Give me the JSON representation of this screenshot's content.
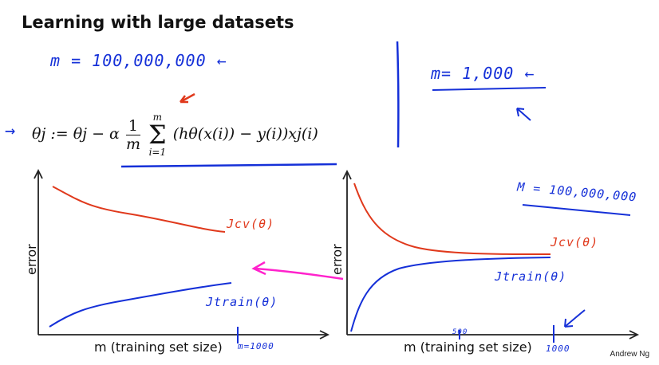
{
  "slide": {
    "title": "Learning with large datasets",
    "author": "Andrew Ng"
  },
  "annotations": {
    "m_large": "m = 100,000,000 ←",
    "m_small": "m= 1,000 ←",
    "m_large_right": "M = 100,000,000",
    "arrow_marker": "→",
    "jcv": "Jcv(θ)",
    "jtrain": "Jtrain(θ)",
    "m_tick_left": "m=1000",
    "tick_500": "500",
    "tick_1000": "1000"
  },
  "formula": {
    "theta_j": "θj := θj − α",
    "fraction_num": "1",
    "fraction_den": "m",
    "sum_top": "m",
    "sum_bottom": "i=1",
    "body": "(hθ(x(i)) − y(i))xj(i)"
  },
  "plots": {
    "left": {
      "ylabel": "error",
      "xlabel": "m  (training set size)"
    },
    "right": {
      "ylabel": "error",
      "xlabel": "m  (training set size)"
    }
  },
  "colors": {
    "blue_ink": "#1530d8",
    "red_ink": "#e0391c",
    "magenta_ink": "#ff22cc"
  }
}
